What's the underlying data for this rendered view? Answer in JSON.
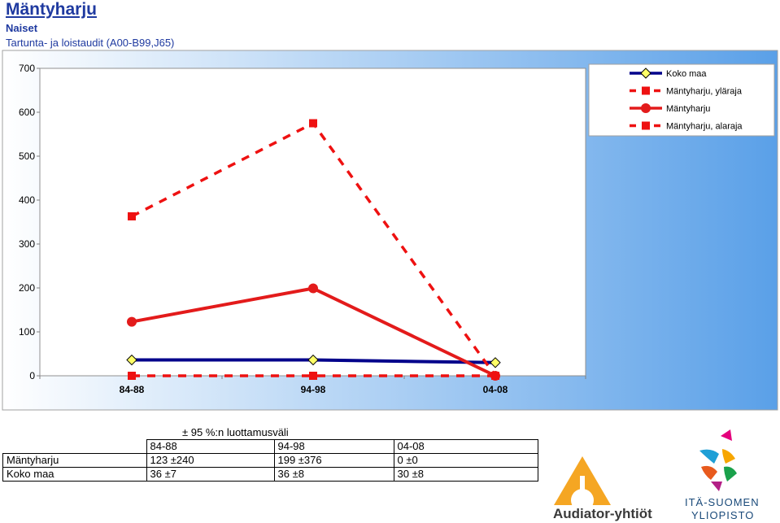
{
  "header": {
    "title": "Mäntyharju",
    "subtitle": "Naiset",
    "description": "Tartunta- ja loistaudit (A00-B99,J65)"
  },
  "chart_data": {
    "type": "line",
    "categories": [
      "84-88",
      "94-98",
      "04-08"
    ],
    "ylim": [
      0,
      700
    ],
    "yticks": [
      0,
      100,
      200,
      300,
      400,
      500,
      600,
      700
    ],
    "grid": false,
    "legend_position": "top-right",
    "series": [
      {
        "name": "Koko maa",
        "values": [
          36,
          36,
          30
        ],
        "color": "#00008b",
        "style": "solid",
        "marker": "diamond"
      },
      {
        "name": "Mäntyharju, yläraja",
        "values": [
          363,
          575,
          0
        ],
        "color": "#ee1111",
        "style": "dashed",
        "marker": "square"
      },
      {
        "name": "Mäntyharju",
        "values": [
          123,
          199,
          0
        ],
        "color": "#e31b1b",
        "style": "solid",
        "marker": "circle"
      },
      {
        "name": "Mäntyharju, alaraja",
        "values": [
          0,
          0,
          0
        ],
        "color": "#ee1111",
        "style": "dashed",
        "marker": "square"
      }
    ]
  },
  "table": {
    "caption": "± 95 %:n luottamusväli",
    "columns": [
      "84-88",
      "94-98",
      "04-08"
    ],
    "rows": [
      {
        "label": "Mäntyharju",
        "cells": [
          "123 ±240",
          "199 ±376",
          "0 ±0"
        ]
      },
      {
        "label": "Koko maa",
        "cells": [
          "36 ±7",
          "36 ±8",
          "30 ±8"
        ]
      }
    ]
  },
  "logos": {
    "audiator": "Audiator-yhtiöt",
    "uef_line1": "ITÄ-SUOMEN",
    "uef_line2": "YLIOPISTO"
  },
  "colors": {
    "plot_bg_left": "#ffffff",
    "plot_bg_right": "#5aa0e8",
    "title": "#1f3aa0"
  }
}
